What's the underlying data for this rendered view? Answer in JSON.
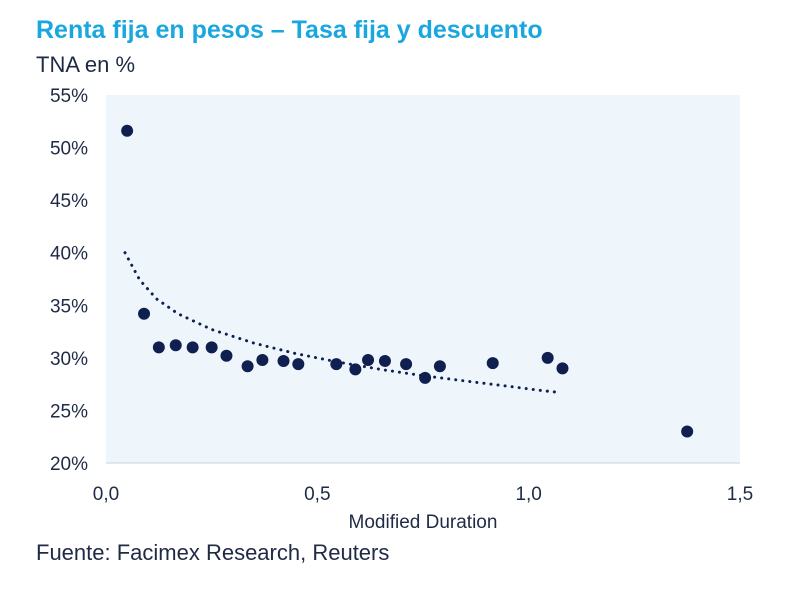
{
  "colors": {
    "title": "#1aa6df",
    "text": "#1f2a44",
    "points": "#0f1f4f",
    "plot_background": "#eef6fc",
    "trendline": "#0f1f4f"
  },
  "chart_data": {
    "type": "scatter",
    "title": "Renta fija en pesos – Tasa fija y descuento",
    "subtitle": "TNA en %",
    "xlabel": "Modified Duration",
    "ylabel": "",
    "source": "Fuente: Facimex Research, Reuters",
    "xlim": [
      0,
      1.5
    ],
    "ylim": [
      20,
      55
    ],
    "x_ticks": [
      0,
      0.5,
      1.0,
      1.5
    ],
    "x_tick_labels": [
      "0,0",
      "0,5",
      "1,0",
      "1,5"
    ],
    "y_ticks": [
      20,
      25,
      30,
      35,
      40,
      45,
      50,
      55
    ],
    "y_tick_labels": [
      "20%",
      "25%",
      "30%",
      "35%",
      "40%",
      "45%",
      "50%",
      "55%"
    ],
    "grid": false,
    "series": [
      {
        "points": [
          {
            "x": 0.05,
            "y": 51.6
          },
          {
            "x": 0.09,
            "y": 34.2
          },
          {
            "x": 0.125,
            "y": 31.0
          },
          {
            "x": 0.165,
            "y": 31.2
          },
          {
            "x": 0.205,
            "y": 31.0
          },
          {
            "x": 0.25,
            "y": 31.0
          },
          {
            "x": 0.285,
            "y": 30.2
          },
          {
            "x": 0.335,
            "y": 29.2
          },
          {
            "x": 0.37,
            "y": 29.8
          },
          {
            "x": 0.42,
            "y": 29.7
          },
          {
            "x": 0.455,
            "y": 29.4
          },
          {
            "x": 0.545,
            "y": 29.4
          },
          {
            "x": 0.59,
            "y": 28.9
          },
          {
            "x": 0.62,
            "y": 29.8
          },
          {
            "x": 0.66,
            "y": 29.7
          },
          {
            "x": 0.71,
            "y": 29.4
          },
          {
            "x": 0.755,
            "y": 28.1
          },
          {
            "x": 0.79,
            "y": 29.2
          },
          {
            "x": 0.915,
            "y": 29.5
          },
          {
            "x": 1.045,
            "y": 30.0
          },
          {
            "x": 1.08,
            "y": 29.0
          },
          {
            "x": 1.375,
            "y": 23.0
          }
        ]
      }
    ],
    "trendline": {
      "style": "dotted",
      "points": [
        {
          "x": 0.045,
          "y": 40.0
        },
        {
          "x": 0.08,
          "y": 37.4
        },
        {
          "x": 0.12,
          "y": 35.6
        },
        {
          "x": 0.17,
          "y": 34.2
        },
        {
          "x": 0.25,
          "y": 32.7
        },
        {
          "x": 0.35,
          "y": 31.4
        },
        {
          "x": 0.45,
          "y": 30.4
        },
        {
          "x": 0.55,
          "y": 29.6
        },
        {
          "x": 0.65,
          "y": 28.9
        },
        {
          "x": 0.75,
          "y": 28.3
        },
        {
          "x": 0.85,
          "y": 27.8
        },
        {
          "x": 0.95,
          "y": 27.3
        },
        {
          "x": 1.03,
          "y": 26.9
        },
        {
          "x": 1.075,
          "y": 26.7
        }
      ]
    }
  }
}
